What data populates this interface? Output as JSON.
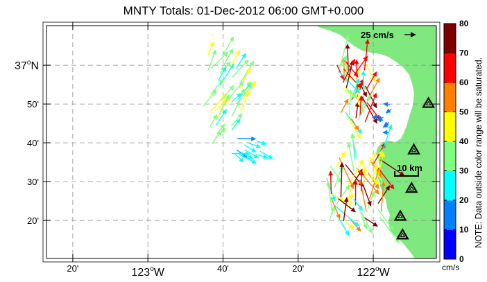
{
  "title": "MNTY Totals: 01-Dec-2012 06:00 GMT+0.000",
  "map": {
    "lat_ticks": [
      {
        "value": 37.0,
        "label": "37",
        "suffix": "N",
        "major": true
      },
      {
        "value": 36.8333,
        "label": "50'",
        "major": false
      },
      {
        "value": 36.6667,
        "label": "40'",
        "major": false
      },
      {
        "value": 36.5,
        "label": "30'",
        "major": false
      },
      {
        "value": 36.3333,
        "label": "20'",
        "major": false
      }
    ],
    "lon_ticks": [
      {
        "value": -123.3333,
        "label": "20'",
        "major": false
      },
      {
        "value": -123.0,
        "label": "123",
        "suffix": "W",
        "major": true
      },
      {
        "value": -122.6667,
        "label": "40'",
        "major": false
      },
      {
        "value": -122.3333,
        "label": "20'",
        "major": false
      },
      {
        "value": -122.0,
        "label": "122",
        "suffix": "W",
        "major": true
      }
    ],
    "lon_range": [
      -123.45,
      -121.72
    ],
    "lat_range": [
      36.17,
      37.17
    ],
    "land_color": "#7fe87f",
    "grid": true,
    "scale_vector_label": "25 cm/s",
    "scale_bar_label": "10 km",
    "stations": [
      {
        "lon": -121.83,
        "lat": 36.47
      },
      {
        "lon": -121.88,
        "lat": 36.35
      },
      {
        "lon": -121.755,
        "lat": 36.835
      },
      {
        "lon": -121.82,
        "lat": 36.635
      },
      {
        "lon": -121.87,
        "lat": 36.27
      }
    ]
  },
  "colorbar": {
    "ticks": [
      "0",
      "10",
      "20",
      "30",
      "40",
      "50",
      "60",
      "70",
      "80"
    ],
    "unit": "cm/s",
    "note": "NOTE: Data outside color range will be saturated.",
    "colors": [
      "#0000ff",
      "#007fff",
      "#00ffff",
      "#7fff7f",
      "#ffff00",
      "#ff7f00",
      "#ff0000",
      "#7f0000"
    ]
  }
}
